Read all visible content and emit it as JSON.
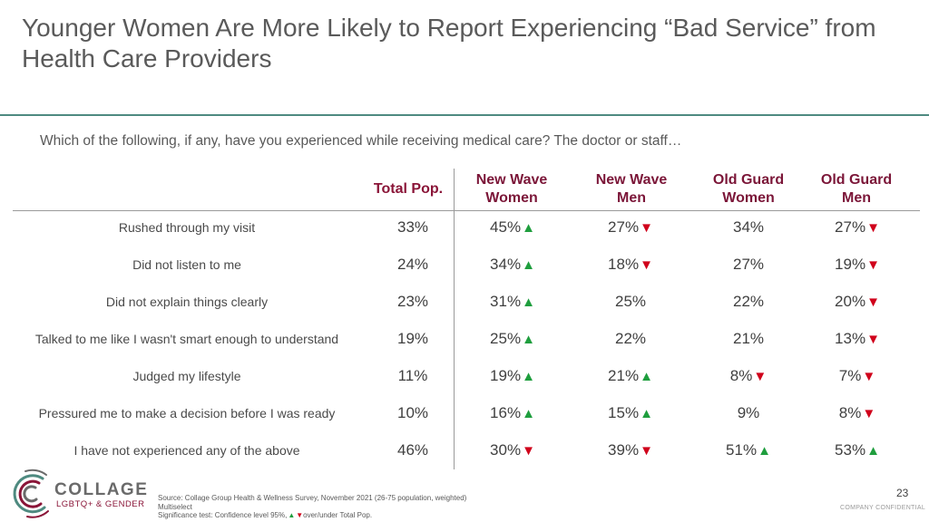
{
  "title": "Younger Women Are More Likely to Report Experiencing “Bad Service” from Health Care Providers",
  "question": "Which of the following, if any, have you experienced while receiving medical care? The doctor or staff…",
  "columns": [
    {
      "line1": "Total Pop.",
      "line2": ""
    },
    {
      "line1": "New Wave",
      "line2": "Women"
    },
    {
      "line1": "New Wave",
      "line2": "Men"
    },
    {
      "line1": "Old Guard",
      "line2": "Women"
    },
    {
      "line1": "Old Guard",
      "line2": "Men"
    }
  ],
  "rows": [
    {
      "label": "Rushed through my visit",
      "cells": [
        {
          "v": "33%",
          "sig": ""
        },
        {
          "v": "45%",
          "sig": "up"
        },
        {
          "v": "27%",
          "sig": "down"
        },
        {
          "v": "34%",
          "sig": ""
        },
        {
          "v": "27%",
          "sig": "down"
        }
      ]
    },
    {
      "label": "Did not listen to me",
      "cells": [
        {
          "v": "24%",
          "sig": ""
        },
        {
          "v": "34%",
          "sig": "up"
        },
        {
          "v": "18%",
          "sig": "down"
        },
        {
          "v": "27%",
          "sig": ""
        },
        {
          "v": "19%",
          "sig": "down"
        }
      ]
    },
    {
      "label": "Did not explain things clearly",
      "cells": [
        {
          "v": "23%",
          "sig": ""
        },
        {
          "v": "31%",
          "sig": "up"
        },
        {
          "v": "25%",
          "sig": ""
        },
        {
          "v": "22%",
          "sig": ""
        },
        {
          "v": "20%",
          "sig": "down"
        }
      ]
    },
    {
      "label": "Talked to me like I wasn't smart enough to understand",
      "cells": [
        {
          "v": "19%",
          "sig": ""
        },
        {
          "v": "25%",
          "sig": "up"
        },
        {
          "v": "22%",
          "sig": ""
        },
        {
          "v": "21%",
          "sig": ""
        },
        {
          "v": "13%",
          "sig": "down"
        }
      ]
    },
    {
      "label": "Judged my lifestyle",
      "cells": [
        {
          "v": "11%",
          "sig": ""
        },
        {
          "v": "19%",
          "sig": "up"
        },
        {
          "v": "21%",
          "sig": "up"
        },
        {
          "v": "8%",
          "sig": "down"
        },
        {
          "v": "7%",
          "sig": "down"
        }
      ]
    },
    {
      "label": "Pressured me to make a decision before I was ready",
      "cells": [
        {
          "v": "10%",
          "sig": ""
        },
        {
          "v": "16%",
          "sig": "up"
        },
        {
          "v": "15%",
          "sig": "up"
        },
        {
          "v": "9%",
          "sig": ""
        },
        {
          "v": "8%",
          "sig": "down"
        }
      ]
    },
    {
      "label": "I have not experienced any of the above",
      "cells": [
        {
          "v": "46%",
          "sig": ""
        },
        {
          "v": "30%",
          "sig": "down"
        },
        {
          "v": "39%",
          "sig": "down"
        },
        {
          "v": "51%",
          "sig": "up"
        },
        {
          "v": "53%",
          "sig": "up"
        }
      ]
    }
  ],
  "colors": {
    "up": "#1f9e3e",
    "down": "#d0021b",
    "header": "#7b1638",
    "rule": "#4e8a80"
  },
  "brand": {
    "name": "COLLAGE",
    "sub": "LGBTQ+ & GENDER"
  },
  "footnote": {
    "source": "Source: Collage Group Health & Wellness Survey, November 2021 (26-75 population, weighted)",
    "multiselect": "Multiselect",
    "sig_prefix": "Significance test: Confidence level 95%,",
    "sig_suffix": "over/under Total Pop."
  },
  "page_number": "23",
  "confidential": "COMPANY CONFIDENTIAL"
}
